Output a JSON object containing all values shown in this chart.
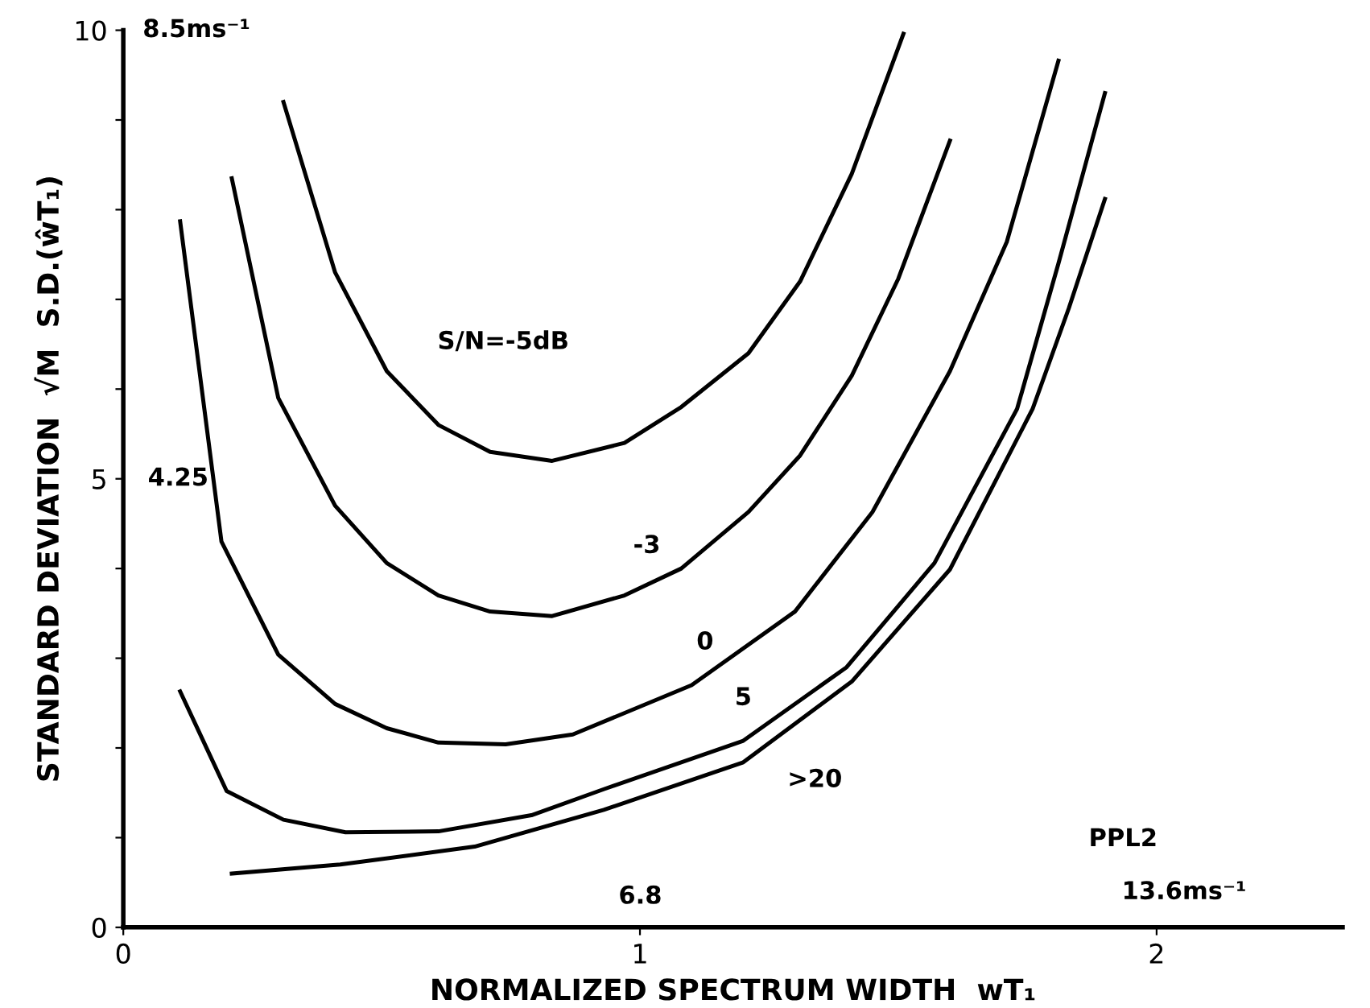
{
  "chart_data": {
    "type": "line",
    "xlabel": "NORMALIZED SPECTRUM WIDTH  wT₁",
    "ylabel": "STANDARD DEVIATION  √M  S.D.(ŵT₁)",
    "xlim": [
      0,
      2.36
    ],
    "ylim": [
      0,
      10
    ],
    "xticks": [
      0,
      1,
      2
    ],
    "yticks": [
      0,
      {
        "value": 1,
        "label": null
      },
      {
        "value": 2,
        "label": null
      },
      {
        "value": 3,
        "label": null
      },
      {
        "value": 4,
        "label": null
      },
      5,
      {
        "value": 6,
        "label": null
      },
      {
        "value": 7,
        "label": null
      },
      {
        "value": 8,
        "label": null
      },
      {
        "value": 9,
        "label": null
      },
      10
    ],
    "grid": false,
    "marker": "none",
    "line_style": "solid",
    "series": [
      {
        "name": "S/N=-5dB",
        "color": "#000000",
        "x": [
          0.31,
          0.41,
          0.51,
          0.61,
          0.71,
          0.83,
          0.97,
          1.08,
          1.21,
          1.31,
          1.41,
          1.51
        ],
        "values": [
          9.2,
          7.3,
          6.2,
          5.6,
          5.3,
          5.2,
          5.4,
          5.8,
          6.4,
          7.2,
          8.4,
          9.96
        ]
      },
      {
        "name": "-3",
        "color": "#000000",
        "x": [
          0.21,
          0.3,
          0.41,
          0.51,
          0.61,
          0.71,
          0.83,
          0.97,
          1.08,
          1.21,
          1.31,
          1.41,
          1.5,
          1.6
        ],
        "values": [
          8.35,
          5.9,
          4.7,
          4.06,
          3.7,
          3.52,
          3.47,
          3.7,
          4.0,
          4.63,
          5.26,
          6.15,
          7.23,
          8.77
        ]
      },
      {
        "name": "0",
        "color": "#000000",
        "x": [
          0.11,
          0.19,
          0.3,
          0.41,
          0.51,
          0.61,
          0.74,
          0.87,
          1.1,
          1.3,
          1.45,
          1.6,
          1.71,
          1.81
        ],
        "values": [
          7.87,
          4.3,
          3.04,
          2.49,
          2.22,
          2.06,
          2.04,
          2.15,
          2.7,
          3.52,
          4.63,
          6.2,
          7.64,
          9.66
        ]
      },
      {
        "name": "5",
        "color": "#000000",
        "x": [
          0.11,
          0.2,
          0.31,
          0.43,
          0.61,
          0.79,
          0.93,
          1.2,
          1.4,
          1.57,
          1.73,
          1.81,
          1.9
        ],
        "values": [
          2.63,
          1.52,
          1.2,
          1.06,
          1.07,
          1.25,
          1.54,
          2.08,
          2.9,
          4.06,
          5.78,
          7.4,
          9.3
        ]
      },
      {
        "name": ">20",
        "color": "#000000",
        "x": [
          0.21,
          0.42,
          0.68,
          0.93,
          1.2,
          1.41,
          1.6,
          1.76,
          1.83,
          1.9
        ],
        "values": [
          0.6,
          0.7,
          0.9,
          1.31,
          1.84,
          2.74,
          3.99,
          5.78,
          6.9,
          8.12
        ]
      }
    ],
    "annotations": [
      "PPL2",
      "8.5ms⁻¹",
      "4.25",
      "6.8",
      "13.6ms⁻¹"
    ]
  }
}
